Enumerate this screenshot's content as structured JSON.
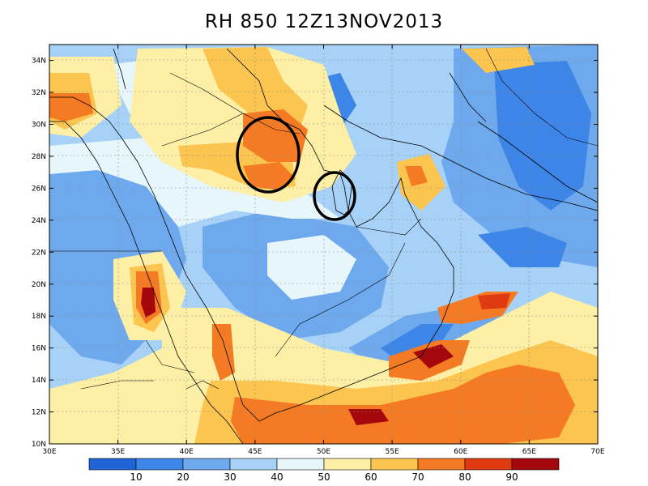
{
  "title": "RH 850  12Z13NOV2013",
  "map": {
    "lon_labels": [
      "30E",
      "35E",
      "40E",
      "45E",
      "50E",
      "55E",
      "60E",
      "65E",
      "70E"
    ],
    "lat_labels": [
      "10N",
      "12N",
      "14N",
      "16N",
      "18N",
      "20N",
      "22N",
      "24N",
      "26N",
      "28N",
      "30N",
      "32N",
      "34N"
    ]
  },
  "colorbar": {
    "levels": [
      "10",
      "20",
      "30",
      "40",
      "50",
      "60",
      "70",
      "80",
      "90"
    ],
    "colors": [
      "#1f63d6",
      "#3d85e6",
      "#6ea9ee",
      "#a7d1f6",
      "#e6f6fb",
      "#fdefa5",
      "#fbc54f",
      "#f47b24",
      "#e03a12",
      "#a5080c"
    ]
  },
  "annotations": [
    "circle-north-gulf",
    "circle-qatar"
  ]
}
